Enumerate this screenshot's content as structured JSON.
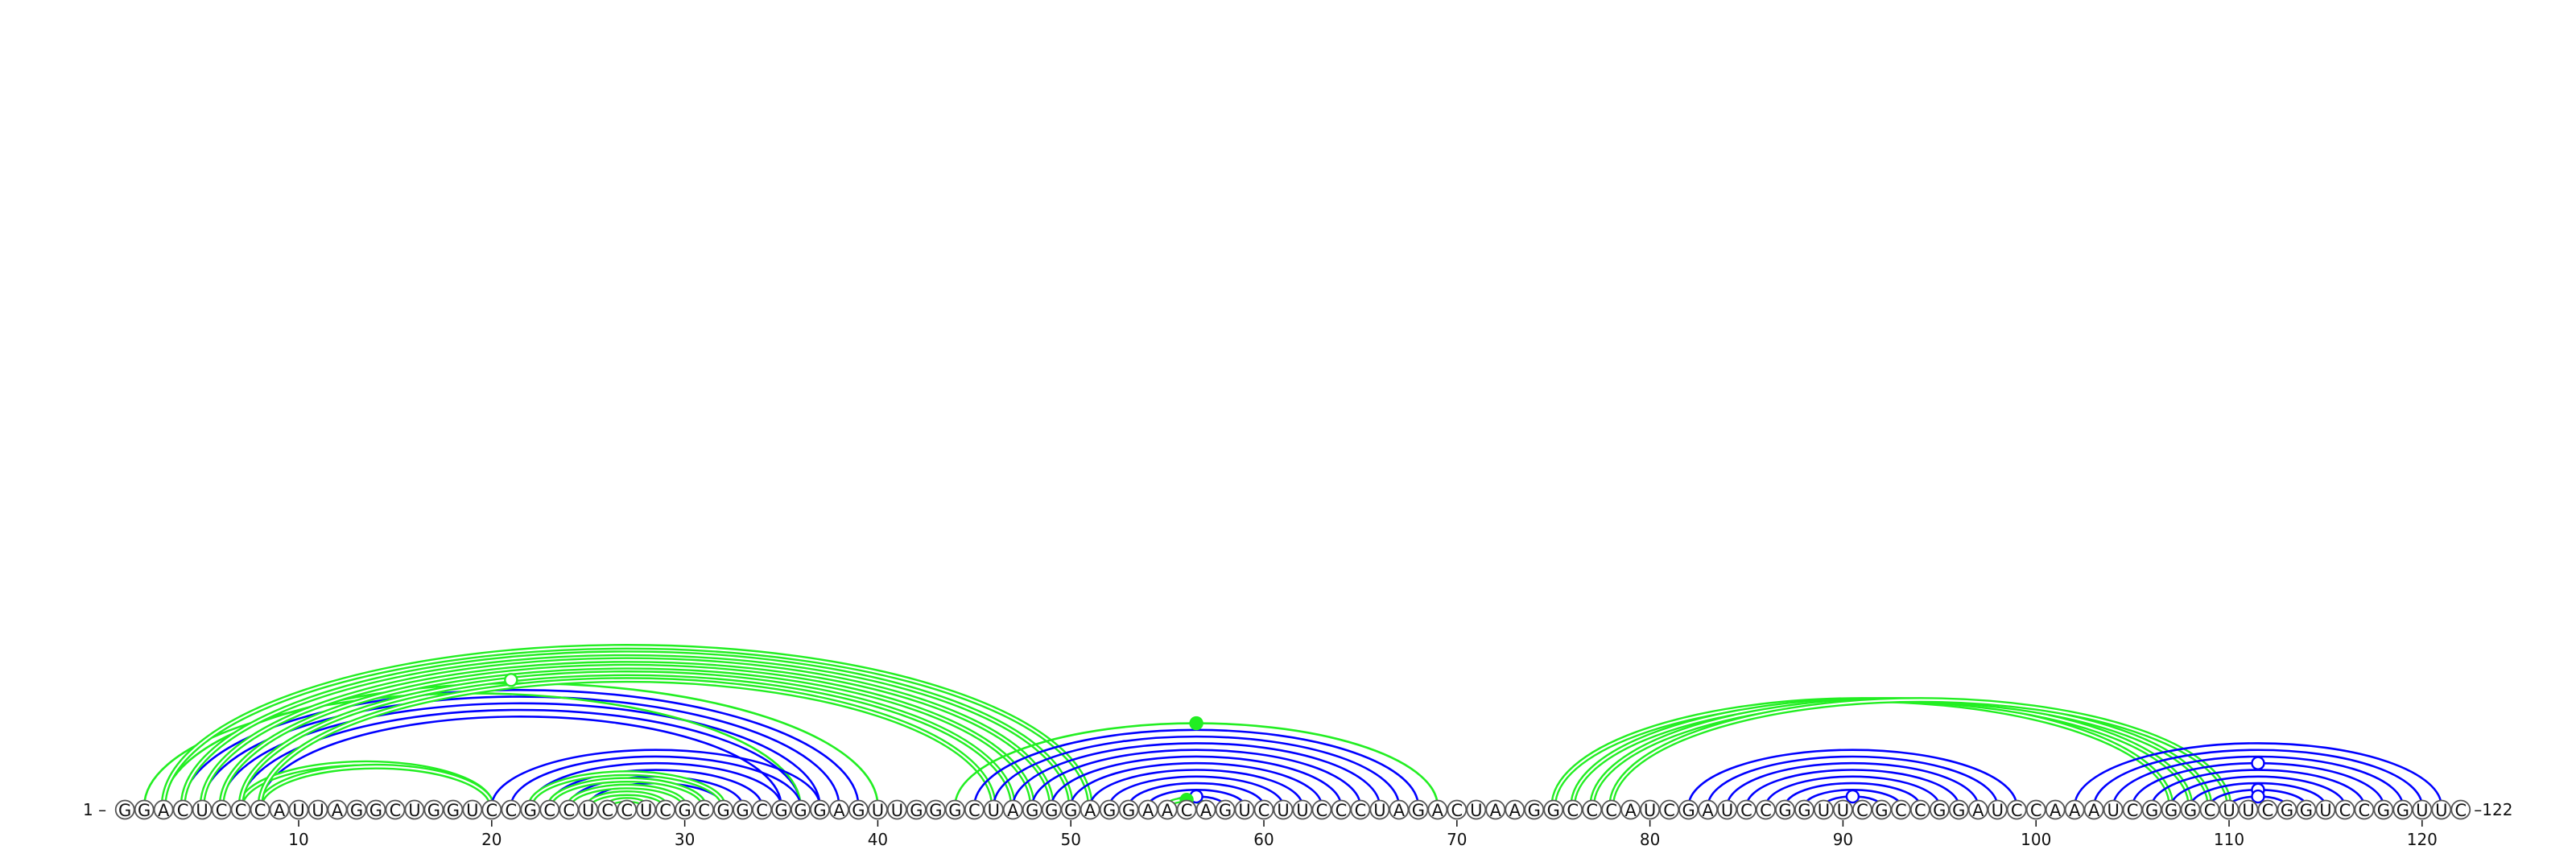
{
  "colors": {
    "blue": "#0000ff",
    "green": "#22ee22",
    "ring": "#555555",
    "text": "#111111"
  },
  "sequence": "GGACUCCCAUUAGGCUGGUCCGCCUCCUCGCGGCGGGAGUUGGGCUAGGGAGGAACAGUCUUCCCUAGACUAAGGCCCAUCGAUCCGGUUCGCCGGAUCCAAAUCGGGCUUCGGUCCGGUUC",
  "length": 122,
  "labels": {
    "start": "1 –",
    "end": "–122"
  },
  "ticks": [
    "10",
    "20",
    "30",
    "40",
    "50",
    "60",
    "70",
    "80",
    "90",
    "100",
    "110",
    "120"
  ],
  "helices": [
    {
      "color": "blue",
      "double": false,
      "pairs": [
        [
          4,
          39
        ],
        [
          5,
          38
        ],
        [
          6,
          37
        ],
        [
          7,
          36
        ],
        [
          8,
          35
        ]
      ]
    },
    {
      "color": "green",
      "double": true,
      "pairs": [
        [
          7,
          20
        ],
        [
          8,
          20
        ]
      ]
    },
    {
      "color": "green",
      "double": false,
      "pairs": [
        [
          2,
          36
        ],
        [
          3,
          40
        ]
      ]
    },
    {
      "color": "green",
      "double": true,
      "pairs": [
        [
          3,
          51
        ],
        [
          4,
          50
        ],
        [
          5,
          49
        ],
        [
          6,
          48
        ],
        [
          7,
          47
        ],
        [
          8,
          46
        ]
      ]
    },
    {
      "color": "blue",
      "double": false,
      "pairs": [
        [
          20,
          37
        ],
        [
          21,
          36
        ],
        [
          22,
          35
        ],
        [
          23,
          34
        ],
        [
          24,
          33
        ],
        [
          25,
          32
        ]
      ]
    },
    {
      "color": "green",
      "double": true,
      "pairs": [
        [
          22,
          32
        ],
        [
          23,
          31
        ],
        [
          24,
          30
        ],
        [
          25,
          29
        ],
        [
          26,
          28
        ]
      ]
    },
    {
      "color": "blue",
      "double": false,
      "pairs": [
        [
          45,
          68
        ],
        [
          46,
          67
        ],
        [
          47,
          66
        ],
        [
          48,
          65
        ],
        [
          49,
          64
        ],
        [
          50,
          63
        ],
        [
          51,
          62
        ],
        [
          52,
          61
        ],
        [
          53,
          60
        ],
        [
          54,
          59
        ],
        [
          55,
          58
        ]
      ]
    },
    {
      "color": "green",
      "double": false,
      "pairs": [
        [
          44,
          69
        ]
      ]
    },
    {
      "color": "green",
      "double": true,
      "pairs": [
        [
          55,
          57
        ]
      ]
    },
    {
      "color": "green",
      "double": true,
      "pairs": [
        [
          75,
          107
        ],
        [
          76,
          108
        ],
        [
          77,
          109
        ],
        [
          78,
          110
        ]
      ]
    },
    {
      "color": "blue",
      "double": false,
      "pairs": [
        [
          82,
          99
        ],
        [
          83,
          98
        ],
        [
          84,
          97
        ],
        [
          85,
          96
        ],
        [
          86,
          95
        ],
        [
          87,
          94
        ],
        [
          88,
          93
        ],
        [
          89,
          92
        ]
      ]
    },
    {
      "color": "blue",
      "double": false,
      "pairs": [
        [
          102,
          121
        ],
        [
          103,
          120
        ],
        [
          104,
          119
        ],
        [
          105,
          118
        ],
        [
          106,
          117
        ],
        [
          107,
          116
        ],
        [
          108,
          115
        ],
        [
          109,
          114
        ],
        [
          110,
          113
        ]
      ]
    }
  ],
  "apex_markers": [
    {
      "pair": [
        2,
        40
      ],
      "filled": false,
      "color": "green"
    },
    {
      "pair": [
        44,
        69
      ],
      "filled": true,
      "color": "green"
    },
    {
      "pair": [
        55,
        58
      ],
      "filled": false,
      "color": "blue"
    },
    {
      "pair": [
        55,
        57
      ],
      "filled": true,
      "color": "green"
    },
    {
      "pair": [
        89,
        92
      ],
      "filled": false,
      "color": "blue"
    },
    {
      "pair": [
        105,
        118
      ],
      "filled": false,
      "color": "blue"
    },
    {
      "pair": [
        109,
        114
      ],
      "filled": false,
      "color": "blue"
    },
    {
      "pair": [
        110,
        113
      ],
      "filled": false,
      "color": "blue"
    }
  ]
}
